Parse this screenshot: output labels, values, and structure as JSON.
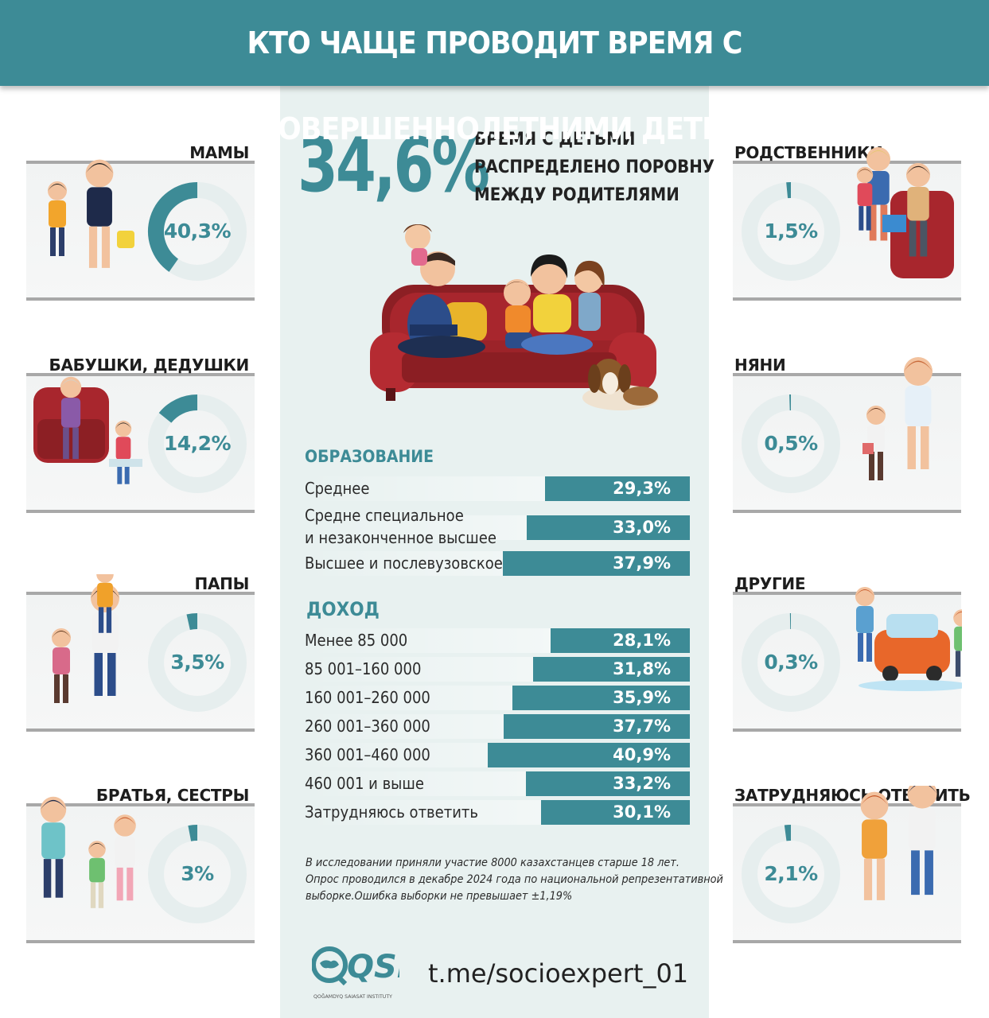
{
  "header": {
    "title": "КТО ЧАЩЕ ПРОВОДИТ ВРЕМЯ С НЕСОВЕРШЕННОЛЕТНИМИ ДЕТЬМИ"
  },
  "headline": {
    "value": "34,6%",
    "text_lines": [
      "ВРЕМЯ С ДЕТЬМИ",
      "РАСПРЕДЕЛЕНО ПОРОВНУ",
      "МЕЖДУ РОДИТЕЛЯМИ"
    ]
  },
  "colors": {
    "accent": "#3d8b96",
    "ring_bg": "#e6eeee",
    "panel_bg": "#e8f1f0"
  },
  "categories_left": [
    {
      "label": "МАМЫ",
      "value": 40.3,
      "display": "40,3%",
      "illustration": "mother-and-daughter-illustration"
    },
    {
      "label": "БАБУШКИ, ДЕДУШКИ",
      "value": 14.2,
      "display": "14,2%",
      "illustration": "grandmother-with-child-illustration"
    },
    {
      "label": "ПАПЫ",
      "value": 3.5,
      "display": "3,5%",
      "illustration": "father-with-kids-illustration"
    },
    {
      "label": "БРАТЬЯ, СЕСТРЫ",
      "value": 3,
      "display": "3%",
      "illustration": "siblings-illustration"
    }
  ],
  "categories_right": [
    {
      "label": "РОДСТВЕННИКИ",
      "value": 1.5,
      "display": "1,5%",
      "illustration": "relatives-reading-illustration"
    },
    {
      "label": "НЯНИ",
      "value": 0.5,
      "display": "0,5%",
      "illustration": "nanny-with-girl-illustration"
    },
    {
      "label": "ДРУГИЕ",
      "value": 0.3,
      "display": "0,3%",
      "illustration": "kids-washing-car-illustration"
    },
    {
      "label": "ЗАТРУДНЯЮСЬ ОТВЕТИТЬ",
      "value": 2.1,
      "display": "2,1%",
      "illustration": "couple-illustration"
    }
  ],
  "chart_data": [
    {
      "type": "pie",
      "style": "donut",
      "categories": [
        "МАМЫ",
        "БАБУШКИ, ДЕДУШКИ",
        "ПАПЫ",
        "БРАТЬЯ, СЕСТРЫ",
        "РОДСТВЕННИКИ",
        "НЯНИ",
        "ДРУГИЕ",
        "ЗАТРУДНЯЮСЬ ОТВЕТИТЬ"
      ],
      "values": [
        40.3,
        14.2,
        3.5,
        3,
        1.5,
        0.5,
        0.3,
        2.1
      ]
    },
    {
      "type": "bar",
      "orientation": "horizontal",
      "title": "ОБРАЗОВАНИЕ",
      "categories": [
        "Среднее",
        "Средне специальное и незаконченное высшее",
        "Высшее и послевузовское"
      ],
      "values": [
        29.3,
        33.0,
        37.9
      ],
      "labels": [
        "29,3%",
        "33,0%",
        "37,9%"
      ]
    },
    {
      "type": "bar",
      "orientation": "horizontal",
      "title": "ДОХОД",
      "categories": [
        "Менее 85 000",
        "85 001–160 000",
        "160 001–260 000",
        "260 001–360 000",
        "360 001–460 000",
        "460 001 и выше",
        "Затрудняюсь ответить"
      ],
      "values": [
        28.1,
        31.8,
        35.9,
        37.7,
        40.9,
        33.2,
        30.1
      ],
      "labels": [
        "28,1%",
        "31,8%",
        "35,9%",
        "37,7%",
        "40,9%",
        "33,2%",
        "30,1%"
      ]
    }
  ],
  "education": {
    "title": "ОБРАЗОВАНИЕ",
    "rows": [
      {
        "label_lines": [
          "Среднее"
        ],
        "value": 29.3,
        "display": "29,3%"
      },
      {
        "label_lines": [
          "Средне специальное",
          "и незаконченное высшее"
        ],
        "value": 33.0,
        "display": "33,0%"
      },
      {
        "label_lines": [
          "Высшее и послевузовское"
        ],
        "value": 37.9,
        "display": "37,9%"
      }
    ]
  },
  "income": {
    "title": "ДОХОД",
    "rows": [
      {
        "label": "Менее 85 000",
        "value": 28.1,
        "display": "28,1%"
      },
      {
        "label": "85 001–160 000",
        "value": 31.8,
        "display": "31,8%"
      },
      {
        "label": "160 001–260 000",
        "value": 35.9,
        "display": "35,9%"
      },
      {
        "label": "260 001–360 000",
        "value": 37.7,
        "display": "37,7%"
      },
      {
        "label": "360 001–460 000",
        "value": 40.9,
        "display": "40,9%"
      },
      {
        "label": "460 001 и выше",
        "value": 33.2,
        "display": "33,2%"
      },
      {
        "label": "Затрудняюсь ответить",
        "value": 30.1,
        "display": "30,1%"
      }
    ]
  },
  "note": {
    "lines": [
      "В исследовании приняли участие 8000 казахстанцев старше 18 лет.",
      "Опрос проводился в декабре 2024 года по национальной репрезентативной",
      "выборке.Ошибка выборки не превышает ±1,19%"
    ]
  },
  "footer": {
    "logo_text": "QSI",
    "logo_subtitle": "QOĞAMDYQ SAIASAT INSTITUTY",
    "link": "t.me/socioexpert_01"
  },
  "center_illustration": "family-on-sofa-with-dog-illustration"
}
